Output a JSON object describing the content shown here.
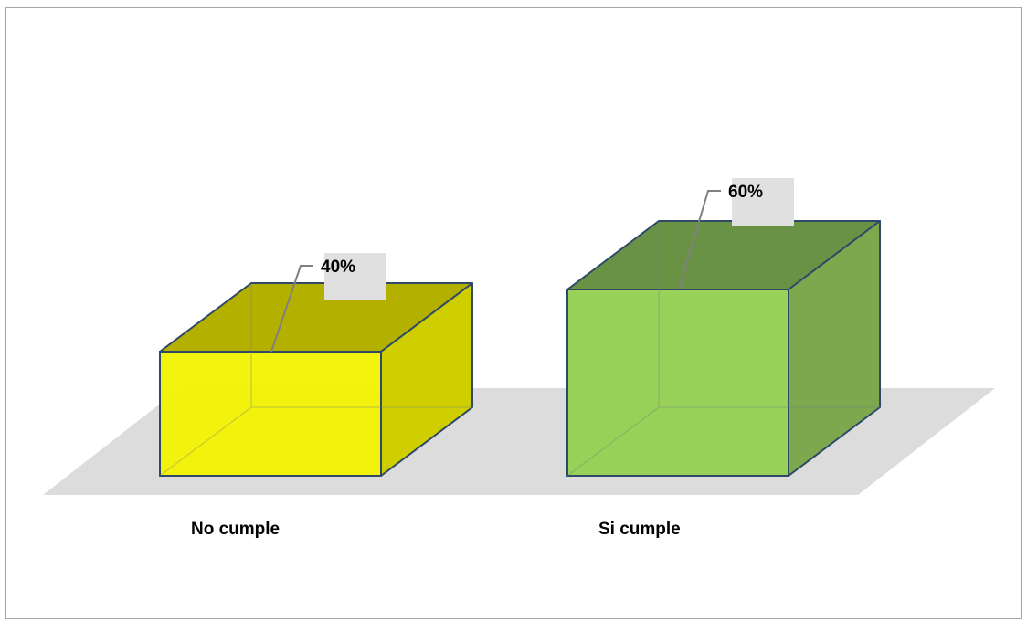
{
  "chart_data": {
    "type": "bar",
    "categories": [
      "No cumple",
      "Si cumple"
    ],
    "values": [
      40,
      60
    ],
    "value_labels": [
      "40%",
      "60%"
    ],
    "ylim": [
      0,
      100
    ],
    "grid": false,
    "legend": "none",
    "colors": [
      "#f2f200",
      "#92d050"
    ],
    "side_colors": [
      "#cfcf00",
      "#7ea84e"
    ],
    "top_colors": [
      "#b4b000",
      "#6a9244"
    ],
    "edge_color": "#2f4a68",
    "floor_color": "#dcdcdc",
    "label_box_color": "#e0e0e0"
  }
}
